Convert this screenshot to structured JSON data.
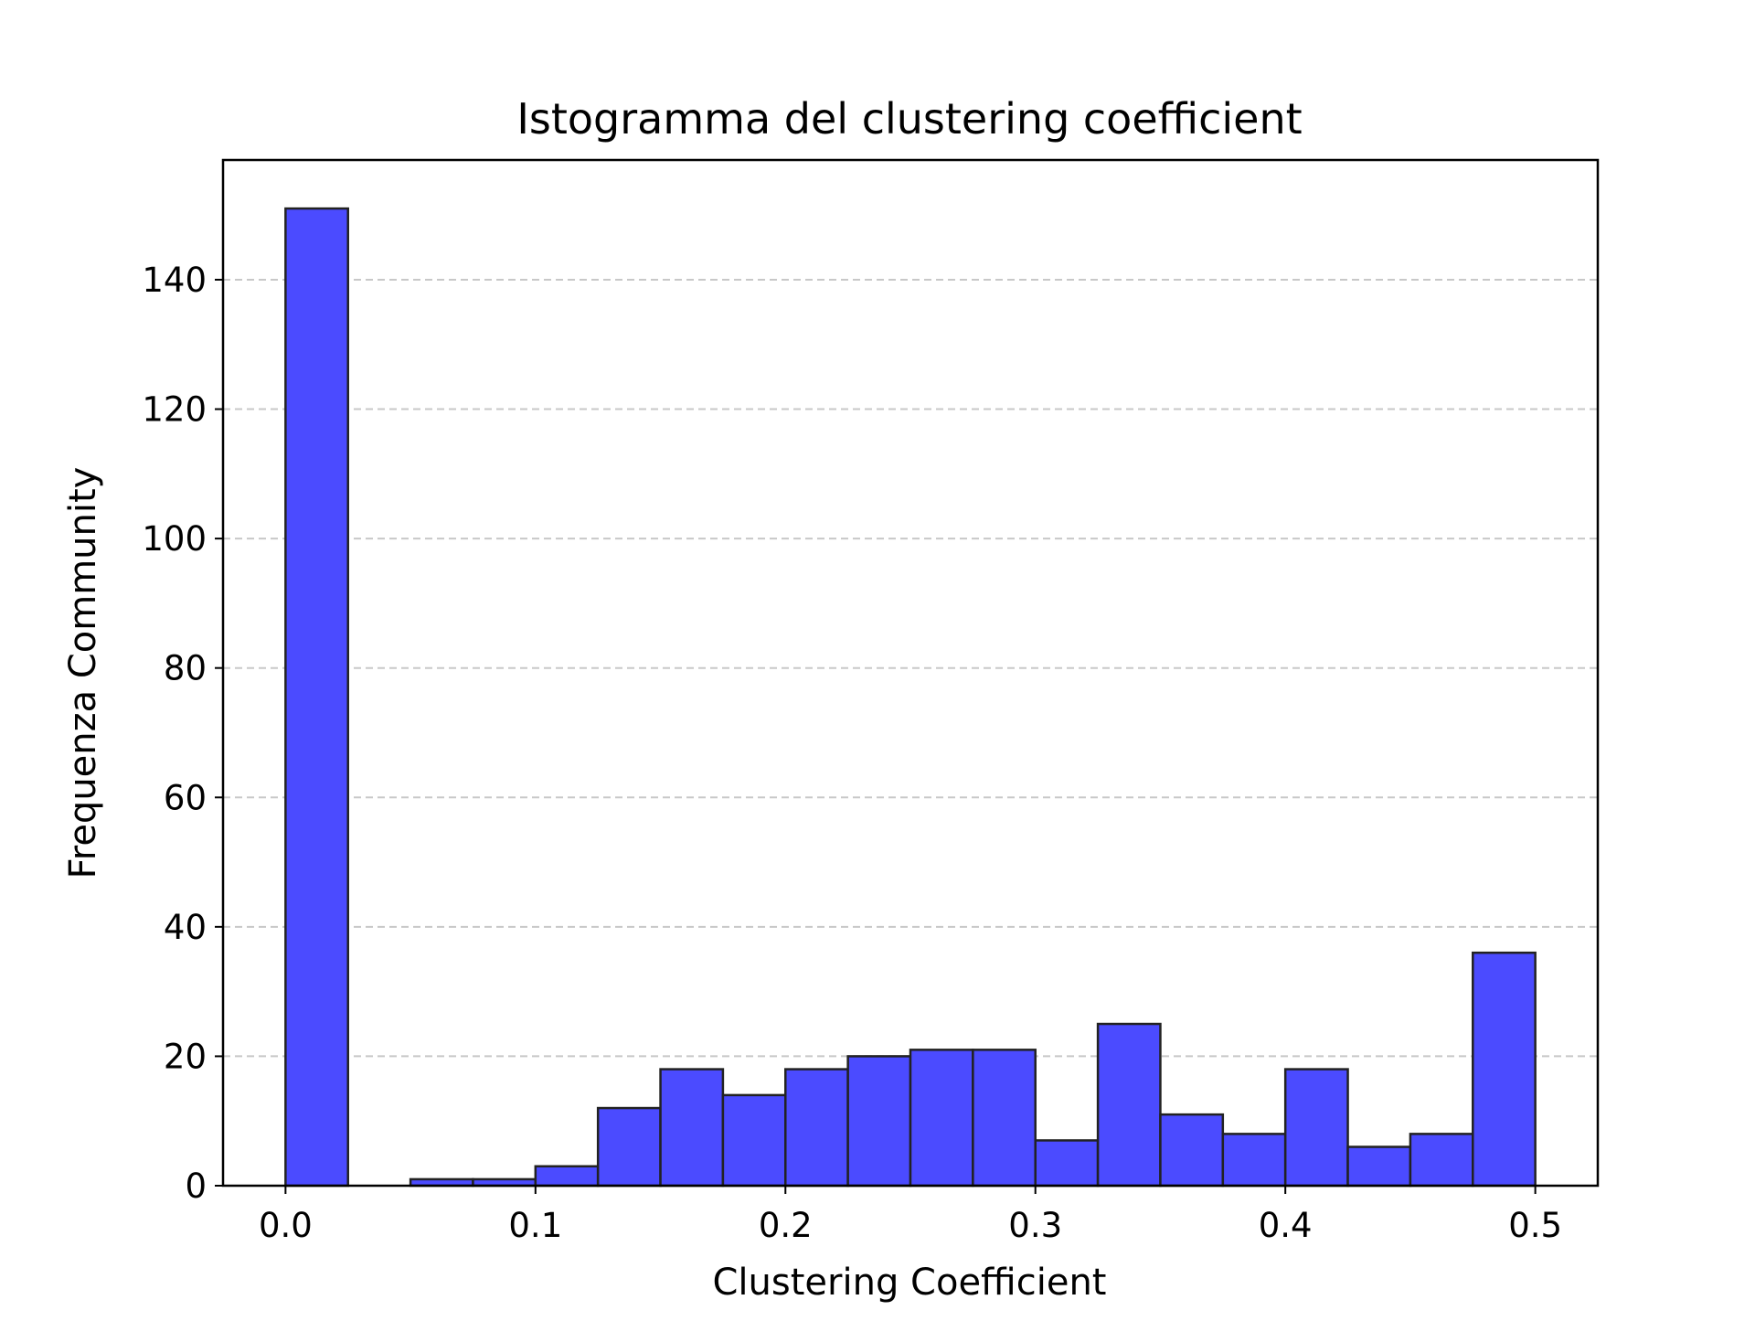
{
  "chart_data": {
    "type": "bar",
    "title": "Istogramma del clustering coefficient",
    "xlabel": "Clustering Coefficient",
    "ylabel": "Frequenza Community",
    "xlim": [
      -0.025,
      0.525
    ],
    "ylim": [
      0,
      158.5
    ],
    "x_ticks": [
      "0.0",
      "0.1",
      "0.2",
      "0.3",
      "0.4",
      "0.5"
    ],
    "y_ticks": [
      "0",
      "20",
      "40",
      "60",
      "80",
      "100",
      "120",
      "140"
    ],
    "grid": "y, dashed",
    "bin_edges": [
      0.0,
      0.025,
      0.05,
      0.075,
      0.1,
      0.125,
      0.15,
      0.175,
      0.2,
      0.225,
      0.25,
      0.275,
      0.3,
      0.325,
      0.35,
      0.375,
      0.4,
      0.425,
      0.45,
      0.475,
      0.5
    ],
    "values": [
      151,
      0,
      1,
      1,
      3,
      12,
      18,
      14,
      18,
      20,
      21,
      21,
      7,
      25,
      11,
      8,
      18,
      6,
      8,
      36
    ],
    "colors": {
      "bar_fill": "#4b4bff",
      "bar_edge": "#222222",
      "grid": "#c8c8c8",
      "axes": "#000000"
    }
  }
}
